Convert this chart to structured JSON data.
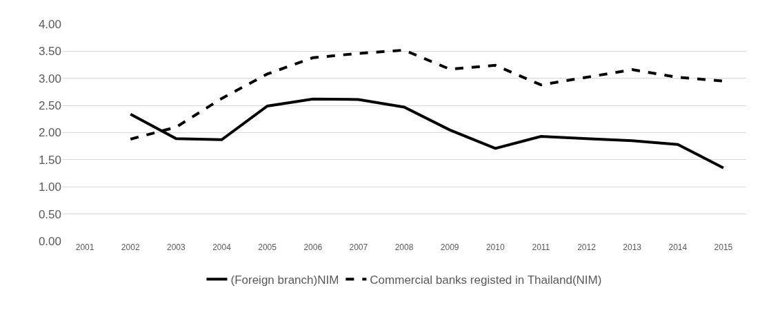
{
  "chart_data": {
    "type": "line",
    "categories": [
      "2001",
      "2002",
      "2003",
      "2004",
      "2005",
      "2006",
      "2007",
      "2008",
      "2009",
      "2010",
      "2011",
      "2012",
      "2013",
      "2014",
      "2015"
    ],
    "series": [
      {
        "name": "(Foreign branch)NIM",
        "color": "#000000",
        "line_style": "solid",
        "values": [
          null,
          2.34,
          1.89,
          1.87,
          2.49,
          2.62,
          2.61,
          2.47,
          2.05,
          1.71,
          1.93,
          1.89,
          1.85,
          1.78,
          1.35
        ]
      },
      {
        "name": "Commercial banks registed in Thailand(NIM)",
        "color": "#000000",
        "line_style": "dashed",
        "values": [
          null,
          1.88,
          2.1,
          2.63,
          3.08,
          3.38,
          3.46,
          3.52,
          3.17,
          3.24,
          2.88,
          3.02,
          3.16,
          3.02,
          2.95
        ]
      }
    ],
    "ylim": [
      0,
      4
    ],
    "yticks": [
      {
        "value": 0,
        "label": "0.00"
      },
      {
        "value": 0.5,
        "label": "0.50"
      },
      {
        "value": 1,
        "label": "1.00"
      },
      {
        "value": 1.5,
        "label": "1.50"
      },
      {
        "value": 2,
        "label": "2.00"
      },
      {
        "value": 2.5,
        "label": "2.50"
      },
      {
        "value": 3,
        "label": "3.00"
      },
      {
        "value": 3.5,
        "label": "3.50"
      },
      {
        "value": 4,
        "label": "4.00"
      }
    ],
    "grid": "y",
    "legend": "bottom",
    "marker": "none"
  }
}
